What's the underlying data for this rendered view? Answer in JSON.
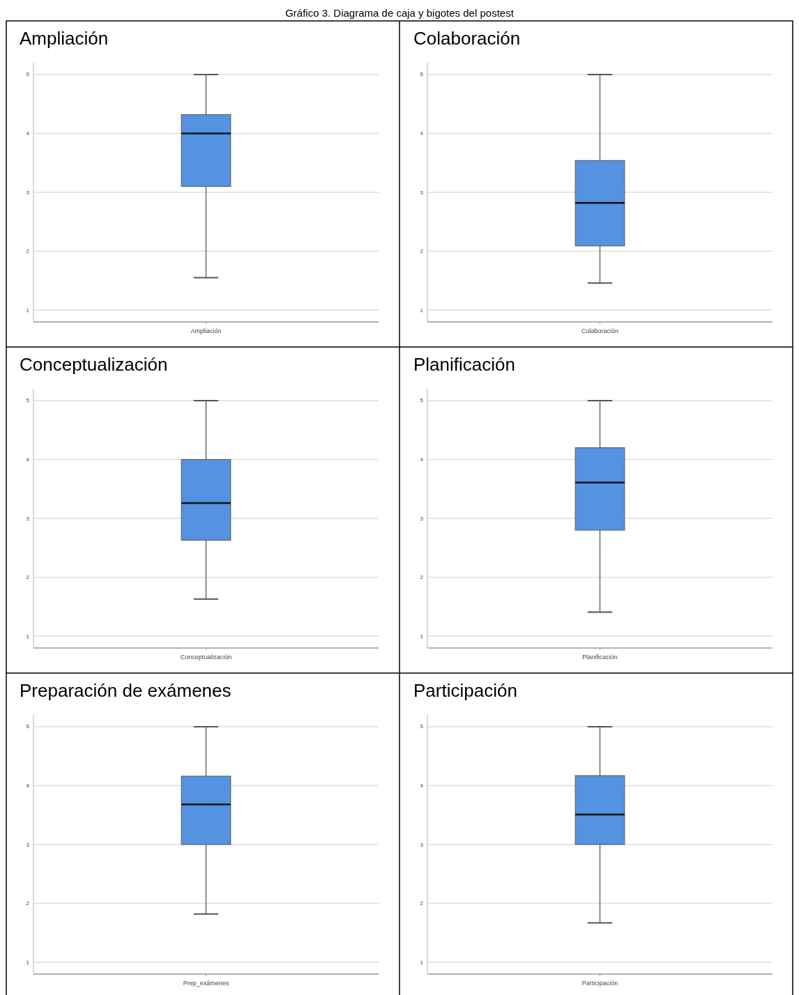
{
  "chart_data": [
    {
      "type": "box",
      "title": "Ampliación",
      "xlabel": "Ampliación",
      "annotations": [
        "Gráfico 3. Diagrama de caja y bigotes del postest"
      ],
      "categories": [
        null
      ],
      "color": "#5592e0",
      "boxes": [
        {
          "low": 1.55,
          "q1": 3.1,
          "median": 4.0,
          "q3": 4.32,
          "high": 5
        }
      ],
      "ylim": [
        0.8,
        5.2
      ],
      "yticks": [
        1,
        2,
        3,
        4,
        5
      ],
      "grid": "y"
    },
    {
      "type": "box",
      "title": "Colaboración",
      "xlabel": "Colaboración",
      "categories": [
        null
      ],
      "color": "#5592e0",
      "boxes": [
        {
          "low": 1.46,
          "q1": 2.09,
          "median": 2.82,
          "q3": 3.54,
          "high": 5
        }
      ],
      "ylim": [
        0.8,
        5.2
      ],
      "yticks": [
        1,
        2,
        3,
        4,
        5
      ],
      "grid": "y"
    },
    {
      "type": "box",
      "title": "Conceptualización",
      "xlabel": "Conceptualización",
      "categories": [
        null
      ],
      "color": "#5592e0",
      "boxes": [
        {
          "low": 1.63,
          "q1": 2.63,
          "median": 3.26,
          "q3": 4.0,
          "high": 5
        }
      ],
      "ylim": [
        0.8,
        5.2
      ],
      "yticks": [
        1,
        2,
        3,
        4,
        5
      ],
      "grid": "y"
    },
    {
      "type": "box",
      "title": "Planificación",
      "xlabel": "Planificación",
      "categories": [
        null
      ],
      "color": "#5592e0",
      "boxes": [
        {
          "low": 1.41,
          "q1": 2.8,
          "median": 3.61,
          "q3": 4.2,
          "high": 5
        }
      ],
      "ylim": [
        0.8,
        5.2
      ],
      "yticks": [
        1,
        2,
        3,
        4,
        5
      ],
      "grid": "y"
    },
    {
      "type": "box",
      "title": "Preparación de exámenes",
      "xlabel": "Prep_exámenes",
      "categories": [
        null
      ],
      "color": "#5592e0",
      "boxes": [
        {
          "low": 1.82,
          "q1": 3.0,
          "median": 3.68,
          "q3": 4.16,
          "high": 5
        }
      ],
      "ylim": [
        0.8,
        5.2
      ],
      "yticks": [
        1,
        2,
        3,
        4,
        5
      ],
      "grid": "y"
    },
    {
      "type": "box",
      "title": "Participación",
      "xlabel": "Participación",
      "categories": [
        null
      ],
      "color": "#5592e0",
      "boxes": [
        {
          "low": 1.67,
          "q1": 3.0,
          "median": 3.51,
          "q3": 4.17,
          "high": 5
        }
      ],
      "ylim": [
        0.8,
        5.2
      ],
      "yticks": [
        1,
        2,
        3,
        4,
        5
      ],
      "grid": "y"
    }
  ]
}
